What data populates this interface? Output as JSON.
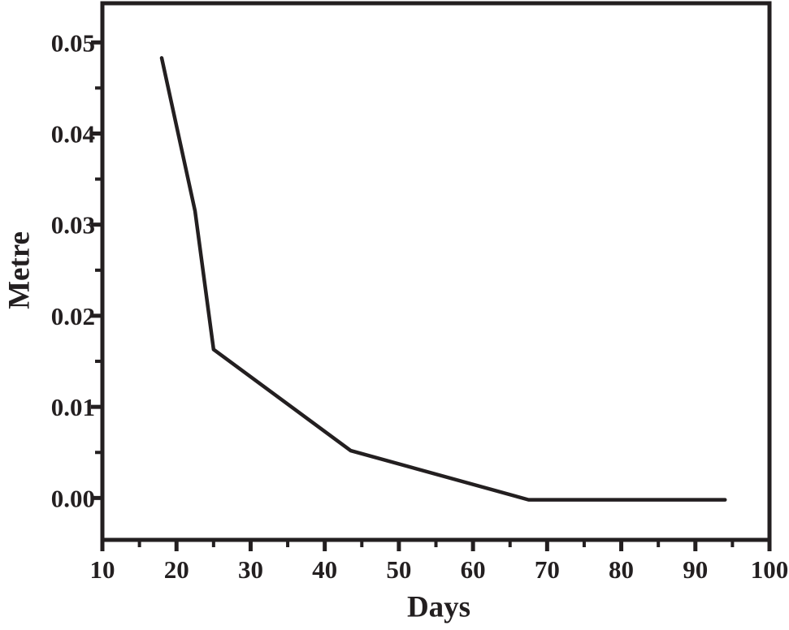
{
  "figure": {
    "background": "#ffffff",
    "ink_color": "#231f20"
  },
  "chart_data": {
    "type": "line",
    "title": "",
    "xlabel": "Days",
    "ylabel": "Metre",
    "x": [
      18,
      22.5,
      25,
      43.5,
      67.5,
      94
    ],
    "y": [
      0.0483,
      0.0315,
      0.0163,
      0.0052,
      -0.0002,
      -0.0002
    ],
    "xlim": [
      10,
      100
    ],
    "ylim": [
      -0.0046,
      0.0543
    ],
    "x_major_ticks": [
      10,
      20,
      30,
      40,
      50,
      60,
      70,
      80,
      90,
      100
    ],
    "x_major_tick_labels": [
      "10",
      "20",
      "30",
      "40",
      "50",
      "60",
      "70",
      "80",
      "90",
      "100"
    ],
    "x_minor_ticks": [
      15,
      25,
      35,
      45,
      55,
      65,
      75,
      85,
      95
    ],
    "y_major_ticks": [
      0,
      0.01,
      0.02,
      0.03,
      0.04,
      0.05
    ],
    "y_major_tick_labels": [
      "0.00",
      "0.01",
      "0.02",
      "0.03",
      "0.04",
      "0.05"
    ],
    "y_minor_ticks": [
      0.005,
      0.015,
      0.025,
      0.035,
      0.045
    ],
    "grid": false,
    "legend": null
  }
}
